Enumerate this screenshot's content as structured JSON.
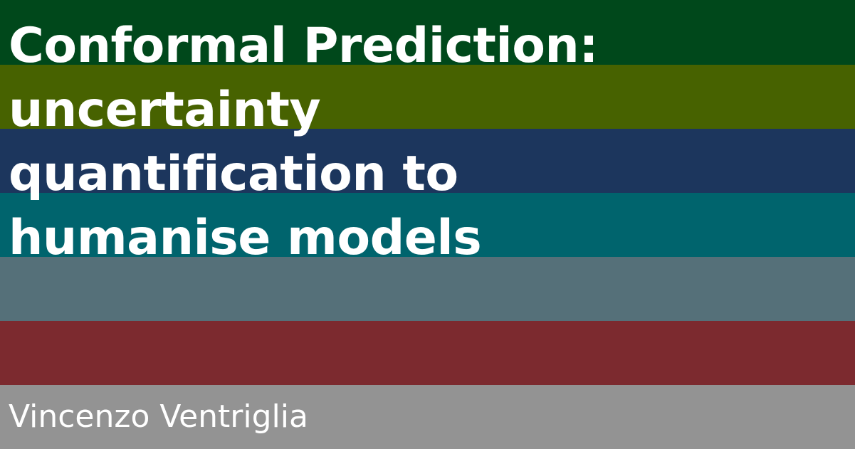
{
  "title_lines": [
    "Conformal Prediction:",
    "uncertainty",
    "quantification to",
    "humanise models"
  ],
  "author": "Vincenzo Ventriglia",
  "stripe_colors": [
    "#00481b",
    "#476200",
    "#1c365d",
    "#00646d",
    "#557079",
    "#7c2a2f",
    "#939393"
  ],
  "text_color": "#ffffff"
}
